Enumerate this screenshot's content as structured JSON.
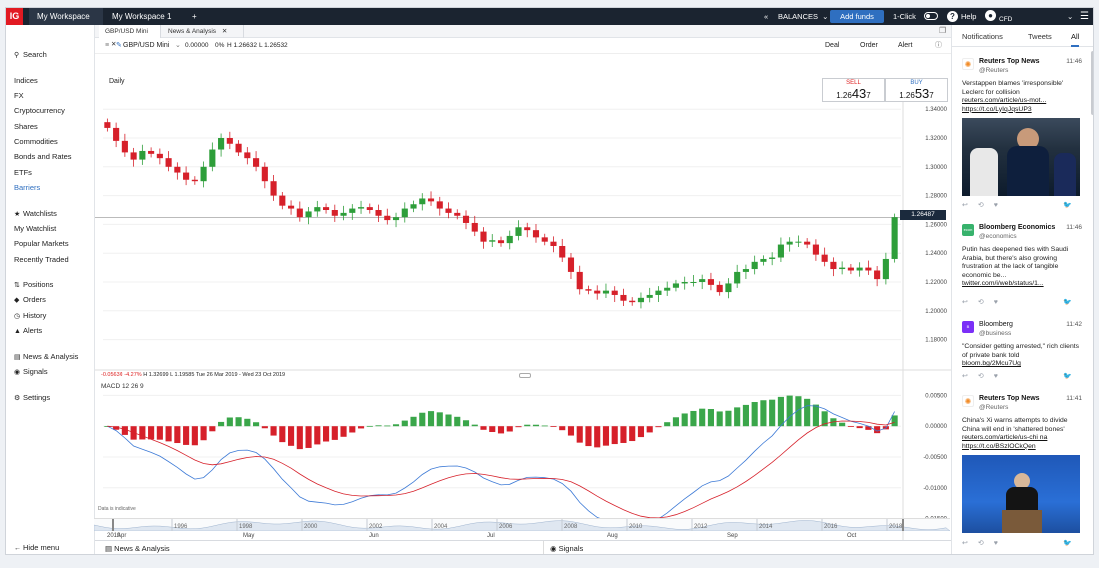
{
  "topbar": {
    "logo": "IG",
    "workspaces": [
      "My Workspace",
      "My Workspace 1"
    ],
    "add_tab": "+",
    "balances": "BALANCES",
    "add_funds": "Add funds",
    "one_click": "1-Click",
    "help": "Help",
    "account_label": "CFD"
  },
  "sidebar": {
    "search": "Search",
    "markets": [
      "Indices",
      "FX",
      "Cryptocurrency",
      "Shares",
      "Commodities",
      "Bonds and Rates",
      "ETFs",
      "Barriers"
    ],
    "lists": [
      "Watchlists",
      "My Watchlist",
      "Popular Markets",
      "Recently Traded"
    ],
    "trading": [
      "Positions",
      "Orders",
      "History",
      "Alerts"
    ],
    "other": [
      "News & Analysis",
      "Signals"
    ],
    "settings": "Settings",
    "hide_menu": "Hide menu"
  },
  "chart_tabs": [
    "GBP/USD Mini",
    "News & Analysis"
  ],
  "toolbar": {
    "instrument": "GBP/USD Mini",
    "change": "0.00000",
    "change_pct": "0%",
    "high": "H 1.26632",
    "low": "L 1.26532",
    "deal": "Deal",
    "order": "Order",
    "alert": "Alert"
  },
  "price_panel": {
    "period": "Daily",
    "sell_label": "SELL",
    "sell_prefix": "1.26",
    "sell_big": "43",
    "sell_small": "7",
    "buy_label": "BUY",
    "buy_prefix": "1.26",
    "buy_big": "53",
    "buy_small": "7",
    "current_price": "1.26487",
    "stats_change": "-0.0563¢",
    "stats_pct": "-4.27%",
    "stats_high": "H 1.32699",
    "stats_low": "L 1.19585",
    "stats_range": "Tue 26 Mar 2019 - Wed 23 Oct 2019",
    "macd_label": "MACD 12 26 9",
    "data_indicative": "Data is indicative"
  },
  "chart_data": [
    {
      "type": "candlestick",
      "title": "GBP/USD Mini",
      "ylim": [
        1.17,
        1.345
      ],
      "yticks": [
        "1.34000",
        "1.32000",
        "1.30000",
        "1.28000",
        "1.26000",
        "1.24000",
        "1.22000",
        "1.20000",
        "1.18000"
      ],
      "x_labels": [
        "2019",
        "Apr",
        "May",
        "Jun",
        "Jul",
        "Aug",
        "Sep",
        "Oct"
      ],
      "close_series": [
        1.327,
        1.318,
        1.31,
        1.305,
        1.311,
        1.309,
        1.306,
        1.3,
        1.296,
        1.291,
        1.29,
        1.3,
        1.312,
        1.32,
        1.316,
        1.31,
        1.306,
        1.3,
        1.29,
        1.28,
        1.273,
        1.271,
        1.265,
        1.269,
        1.272,
        1.27,
        1.266,
        1.268,
        1.271,
        1.272,
        1.27,
        1.266,
        1.263,
        1.265,
        1.271,
        1.274,
        1.278,
        1.276,
        1.271,
        1.268,
        1.266,
        1.261,
        1.255,
        1.248,
        1.249,
        1.247,
        1.252,
        1.258,
        1.256,
        1.251,
        1.248,
        1.245,
        1.237,
        1.227,
        1.215,
        1.214,
        1.212,
        1.214,
        1.211,
        1.207,
        1.206,
        1.209,
        1.211,
        1.214,
        1.216,
        1.219,
        1.22,
        1.22,
        1.222,
        1.218,
        1.213,
        1.219,
        1.227,
        1.229,
        1.234,
        1.236,
        1.237,
        1.246,
        1.248,
        1.248,
        1.246,
        1.239,
        1.234,
        1.229,
        1.23,
        1.228,
        1.23,
        1.228,
        1.222,
        1.236,
        1.265
      ]
    },
    {
      "type": "macd",
      "title": "MACD 12 26 9",
      "ylim": [
        -0.0175,
        0.0075
      ],
      "yticks": [
        "0.00500",
        "0.00000",
        "-0.00500",
        "-0.01000",
        "-0.01500"
      ]
    },
    {
      "type": "navigator",
      "x_labels": [
        "1996",
        "1998",
        "2000",
        "2002",
        "2004",
        "2006",
        "2008",
        "2010",
        "2012",
        "2014",
        "2016",
        "2018"
      ]
    }
  ],
  "bottom_bar": {
    "news": "News & Analysis",
    "signals": "Signals"
  },
  "right_panel": {
    "tabs": [
      "Notifications",
      "Tweets",
      "All"
    ],
    "items": [
      {
        "source": "Reuters Top News",
        "handle": "@Reuters",
        "time": "11:46",
        "text": "Verstappen blames 'irresponsible' Leclerc for collision",
        "link": "reuters.com/article/us-mot... https://t.co/LyIqJqsUP3"
      },
      {
        "source": "Bloomberg Economics",
        "handle": "@economics",
        "time": "11:46",
        "text": "Putin has deepened ties with Saudi Arabia, but there's also growing frustration at the lack of tangible economic be...",
        "link": "twitter.com/i/web/status/1..."
      },
      {
        "source": "Bloomberg",
        "handle": "@business",
        "time": "11:42",
        "text": "\"Consider getting arrested,\" rich clients of private bank told",
        "link": "bloom.bg/2Mcu7Ug"
      },
      {
        "source": "Reuters Top News",
        "handle": "@Reuters",
        "time": "11:41",
        "text": "China's Xi warns attempts to divide China will end in 'shattered bones'",
        "link": "reuters.com/article/us-chi na https://t.co/BSzlOCkQen"
      }
    ]
  }
}
